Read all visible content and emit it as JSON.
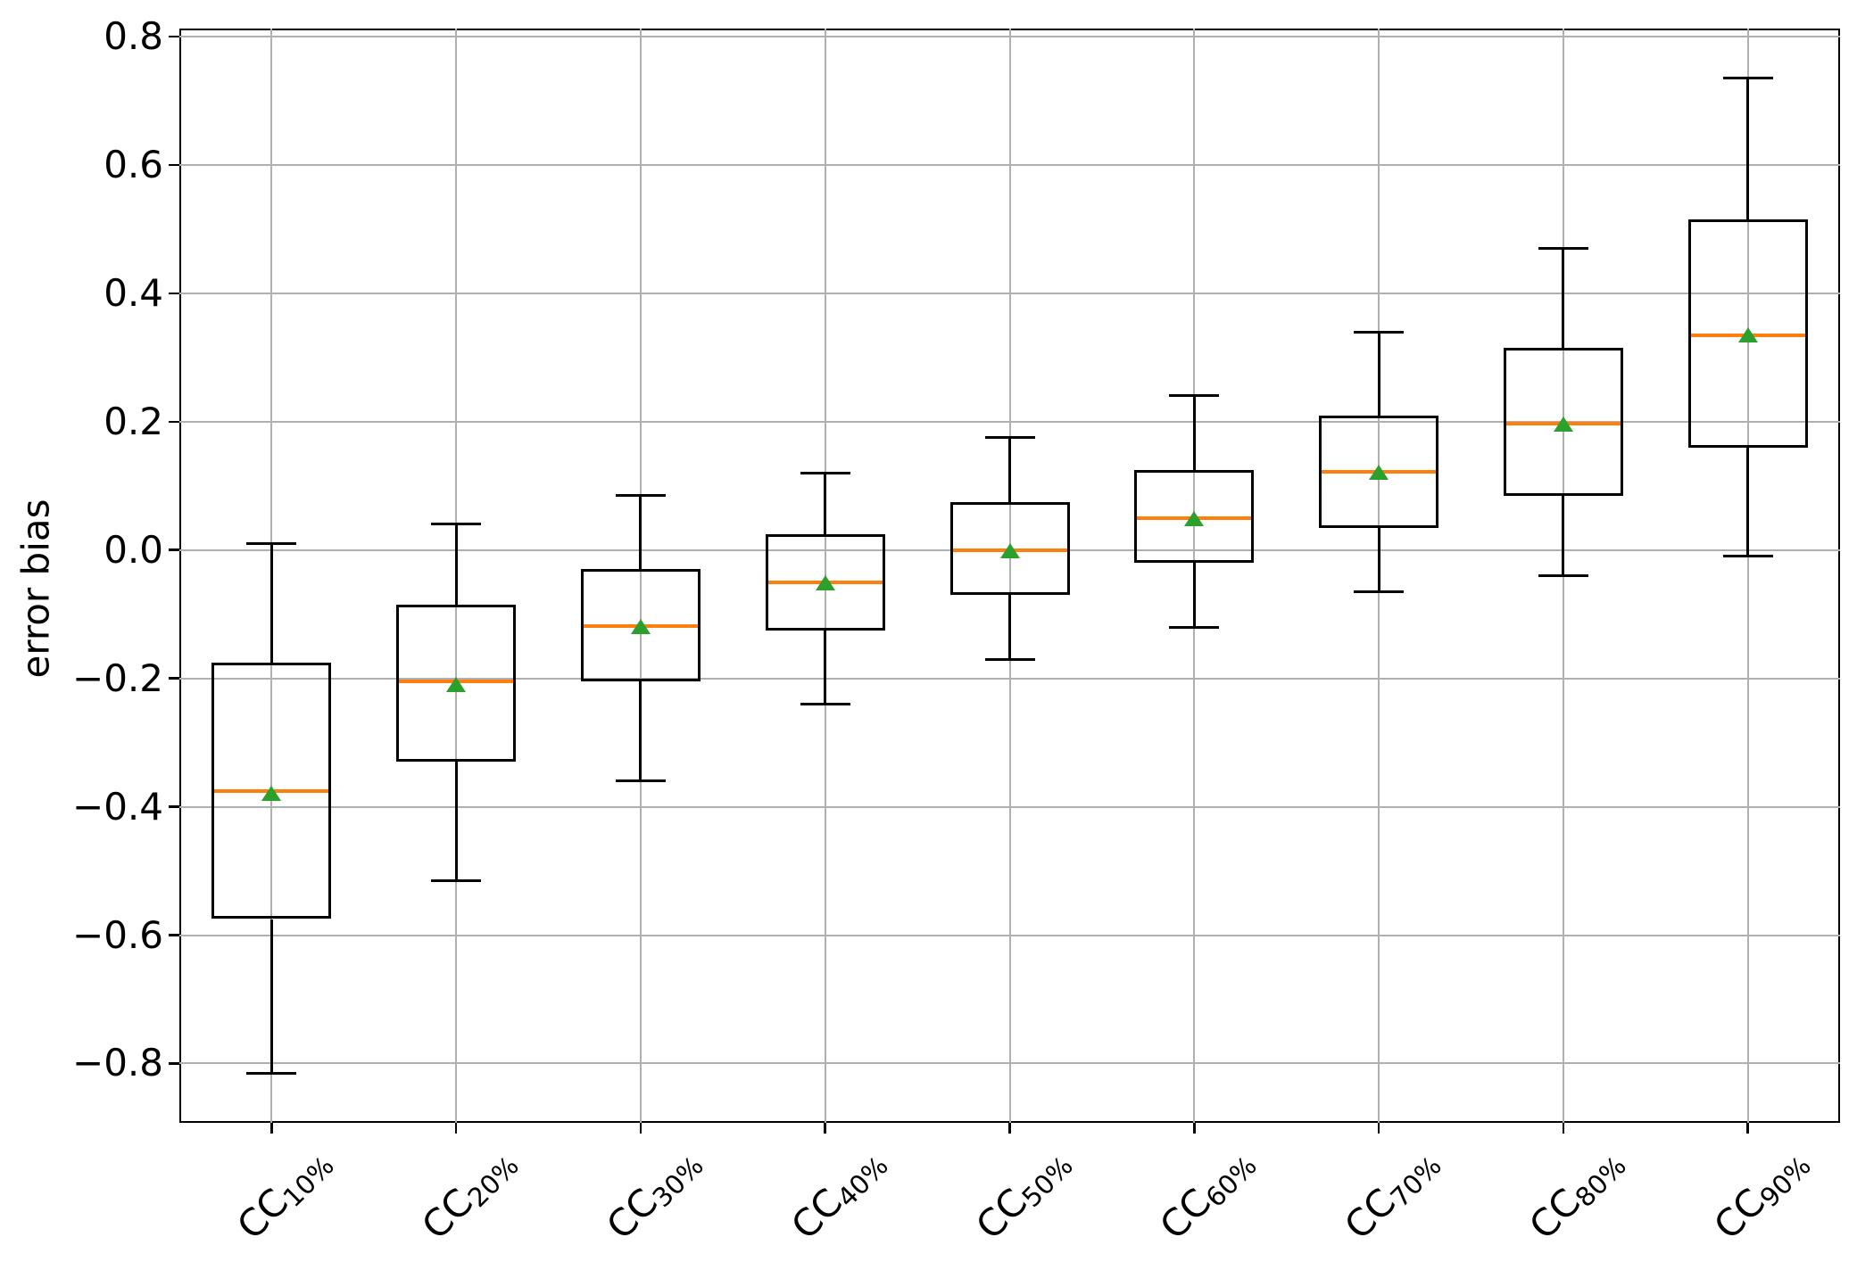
{
  "figure": {
    "title": "",
    "background": "#ffffff"
  },
  "chart_data": {
    "type": "boxplot",
    "title": "",
    "xlabel": "",
    "ylabel": "error bias",
    "ylim": [
      -0.8925,
      0.8125
    ],
    "yticks": [
      0.8,
      0.6,
      0.4,
      0.2,
      0.0,
      -0.2,
      -0.4,
      -0.6,
      -0.8
    ],
    "ytick_labels": [
      "0.8",
      "0.6",
      "0.4",
      "0.2",
      "0.0",
      "−0.2",
      "−0.4",
      "−0.6",
      "−0.8"
    ],
    "grid": true,
    "legend": "none",
    "categories": [
      "CC10%",
      "CC20%",
      "CC30%",
      "CC40%",
      "CC50%",
      "CC60%",
      "CC70%",
      "CC80%",
      "CC90%"
    ],
    "category_labels": [
      {
        "base": "CC",
        "sub": "10%"
      },
      {
        "base": "CC",
        "sub": "20%"
      },
      {
        "base": "CC",
        "sub": "30%"
      },
      {
        "base": "CC",
        "sub": "40%"
      },
      {
        "base": "CC",
        "sub": "50%"
      },
      {
        "base": "CC",
        "sub": "60%"
      },
      {
        "base": "CC",
        "sub": "70%"
      },
      {
        "base": "CC",
        "sub": "80%"
      },
      {
        "base": "CC",
        "sub": "90%"
      }
    ],
    "boxes": [
      {
        "label": "CC10%",
        "whislo": -0.815,
        "q1": -0.575,
        "med": -0.375,
        "q3": -0.175,
        "whishi": 0.01,
        "mean": -0.38
      },
      {
        "label": "CC20%",
        "whislo": -0.515,
        "q1": -0.33,
        "med": -0.205,
        "q3": -0.085,
        "whishi": 0.04,
        "mean": -0.21
      },
      {
        "label": "CC30%",
        "whislo": -0.36,
        "q1": -0.205,
        "med": -0.118,
        "q3": -0.03,
        "whishi": 0.085,
        "mean": -0.12
      },
      {
        "label": "CC40%",
        "whislo": -0.24,
        "q1": -0.125,
        "med": -0.05,
        "q3": 0.025,
        "whishi": 0.12,
        "mean": -0.052
      },
      {
        "label": "CC50%",
        "whislo": -0.17,
        "q1": -0.07,
        "med": 0.0,
        "q3": 0.075,
        "whishi": 0.175,
        "mean": -0.002
      },
      {
        "label": "CC60%",
        "whislo": -0.12,
        "q1": -0.02,
        "med": 0.05,
        "q3": 0.125,
        "whishi": 0.24,
        "mean": 0.048
      },
      {
        "label": "CC70%",
        "whislo": -0.065,
        "q1": 0.035,
        "med": 0.122,
        "q3": 0.21,
        "whishi": 0.34,
        "mean": 0.12
      },
      {
        "label": "CC80%",
        "whislo": -0.04,
        "q1": 0.085,
        "med": 0.197,
        "q3": 0.315,
        "whishi": 0.47,
        "mean": 0.195
      },
      {
        "label": "CC90%",
        "whislo": -0.01,
        "q1": 0.16,
        "med": 0.335,
        "q3": 0.515,
        "whishi": 0.735,
        "mean": 0.335
      }
    ],
    "colors": {
      "median": "#ff7f0e",
      "mean_marker": "#2ca02c",
      "box_edge": "#000000",
      "grid": "#b0b0b0",
      "frame": "#000000"
    }
  }
}
